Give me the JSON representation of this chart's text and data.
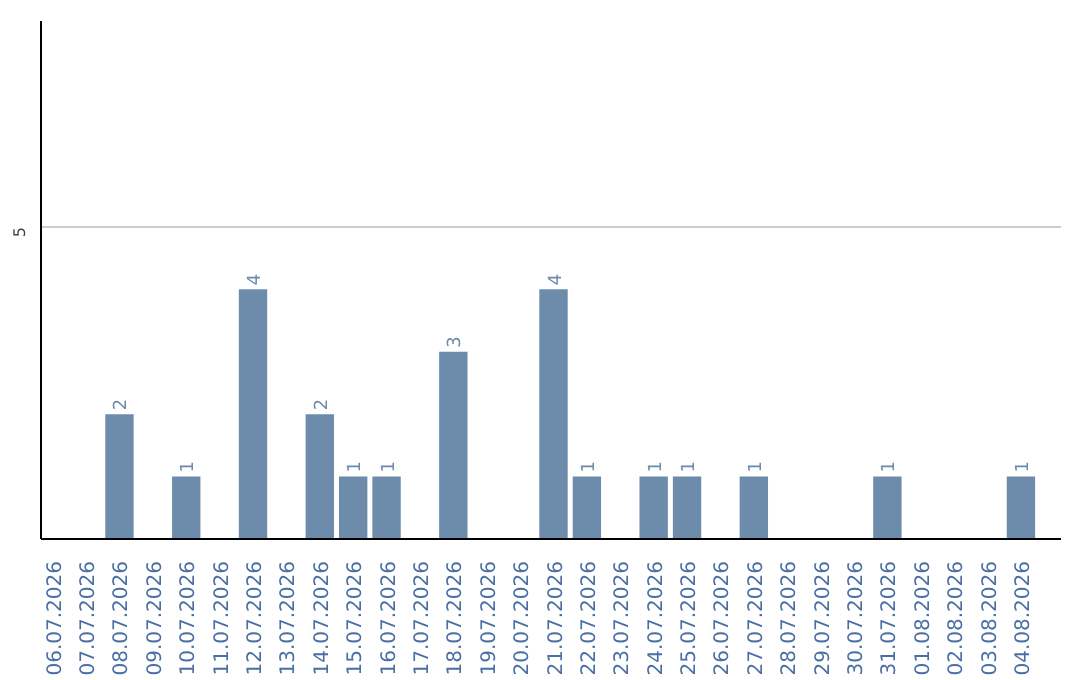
{
  "chart_data": {
    "type": "bar",
    "categories": [
      "06.07.2026",
      "07.07.2026",
      "08.07.2026",
      "09.07.2026",
      "10.07.2026",
      "11.07.2026",
      "12.07.2026",
      "13.07.2026",
      "14.07.2026",
      "15.07.2026",
      "16.07.2026",
      "17.07.2026",
      "18.07.2026",
      "19.07.2026",
      "20.07.2026",
      "21.07.2026",
      "22.07.2026",
      "23.07.2026",
      "24.07.2026",
      "25.07.2026",
      "26.07.2026",
      "27.07.2026",
      "28.07.2026",
      "29.07.2026",
      "30.07.2026",
      "31.07.2026",
      "01.08.2026",
      "02.08.2026",
      "03.08.2026",
      "04.08.2026"
    ],
    "values": [
      0,
      0,
      2,
      0,
      1,
      0,
      4,
      0,
      2,
      1,
      1,
      0,
      3,
      0,
      0,
      4,
      1,
      0,
      1,
      1,
      0,
      1,
      0,
      0,
      0,
      1,
      0,
      0,
      0,
      1
    ],
    "value_labels": [
      null,
      null,
      "2",
      null,
      "1",
      null,
      "4",
      null,
      "2",
      "1",
      "1",
      null,
      "3",
      null,
      null,
      "4",
      "1",
      null,
      "1",
      "1",
      null,
      "1",
      null,
      null,
      null,
      "1",
      null,
      null,
      null,
      "1"
    ],
    "color": "#6d8cab",
    "ylim": [
      0,
      8.3
    ],
    "yticks": [
      5
    ],
    "grid": "y"
  }
}
